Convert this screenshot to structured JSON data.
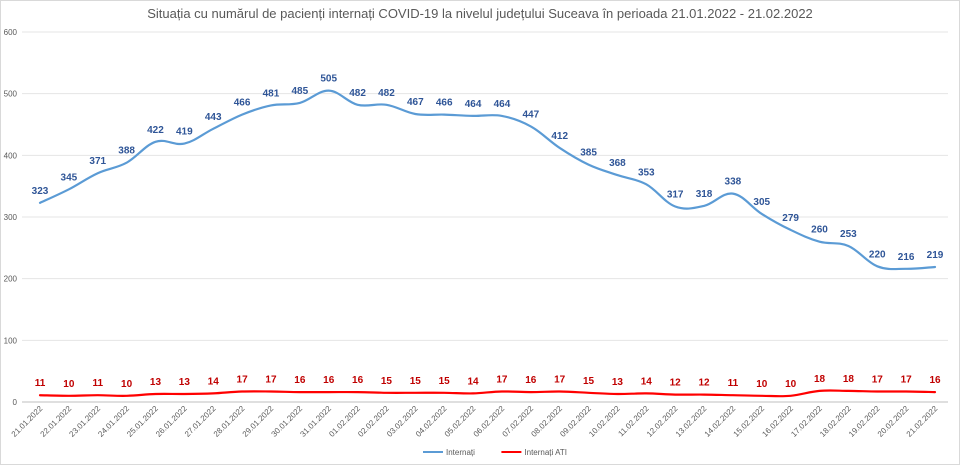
{
  "chart_data": {
    "type": "line",
    "title": "Situația cu numărul de pacienți internați COVID-19 la nivelul județului Suceava în perioada 21.01.2022 - 21.02.2022",
    "categories": [
      "21.01.2022",
      "22.01.2022",
      "23.01.2022",
      "24.01.2022",
      "25.01.2022",
      "26.01.2022",
      "27.01.2022",
      "28.01.2022",
      "29.01.2022",
      "30.01.2022",
      "31.01.2022",
      "01.02.2022",
      "02.02.2022",
      "03.02.2022",
      "04.02.2022",
      "05.02.2022",
      "06.02.2022",
      "07.02.2022",
      "08.02.2022",
      "09.02.2022",
      "10.02.2022",
      "11.02.2022",
      "12.02.2022",
      "13.02.2022",
      "14.02.2022",
      "15.02.2022",
      "16.02.2022",
      "17.02.2022",
      "18.02.2022",
      "19.02.2022",
      "20.02.2022",
      "21.02.2022"
    ],
    "series": [
      {
        "name": "Internați",
        "color": "#5b9bd5",
        "label_color": "#2f5597",
        "values": [
          323,
          345,
          371,
          388,
          422,
          419,
          443,
          466,
          481,
          485,
          505,
          482,
          482,
          467,
          466,
          464,
          464,
          447,
          412,
          385,
          368,
          353,
          317,
          318,
          338,
          305,
          279,
          260,
          253,
          220,
          216,
          219
        ]
      },
      {
        "name": "Internați ATI",
        "color": "#ff0000",
        "label_color": "#c00000",
        "values": [
          11,
          10,
          11,
          10,
          13,
          13,
          14,
          17,
          17,
          16,
          16,
          16,
          15,
          15,
          15,
          14,
          17,
          16,
          17,
          15,
          13,
          14,
          12,
          12,
          11,
          10,
          10,
          18,
          18,
          17,
          17,
          16
        ]
      }
    ],
    "ylim": [
      0,
      600
    ],
    "yticks": [
      0,
      100,
      200,
      300,
      400,
      500,
      600
    ],
    "grid": true,
    "legend": "bottom"
  }
}
